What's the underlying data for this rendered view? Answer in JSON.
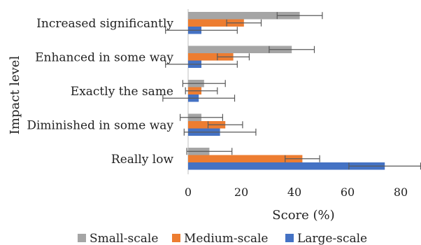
{
  "chart_data": {
    "type": "bar",
    "orientation": "horizontal",
    "categories": [
      "Increased significantly",
      "Enhanced in some way",
      "Exactly the same",
      "Diminished in some way",
      "Really low"
    ],
    "series": [
      {
        "name": "Small-scale",
        "color": "#a5a5a5",
        "values": [
          42,
          39,
          6,
          5,
          8
        ],
        "error": [
          8.5,
          8.5,
          8,
          8,
          8.5
        ]
      },
      {
        "name": "Medium-scale",
        "color": "#ed7d31",
        "values": [
          21,
          17,
          5,
          14,
          43
        ],
        "error": [
          6.5,
          6,
          6,
          6.5,
          6.5
        ]
      },
      {
        "name": "Large-scale",
        "color": "#4472c4",
        "values": [
          5,
          5,
          4,
          12,
          74
        ],
        "error": [
          13.5,
          13.5,
          13.5,
          13.5,
          13.5
        ]
      }
    ],
    "xlabel": "Score (%)",
    "ylabel": "Impact level",
    "xlim": [
      0,
      85
    ],
    "xticks": [
      0,
      20,
      40,
      60,
      80
    ],
    "grid": false,
    "legend_position": "bottom"
  }
}
